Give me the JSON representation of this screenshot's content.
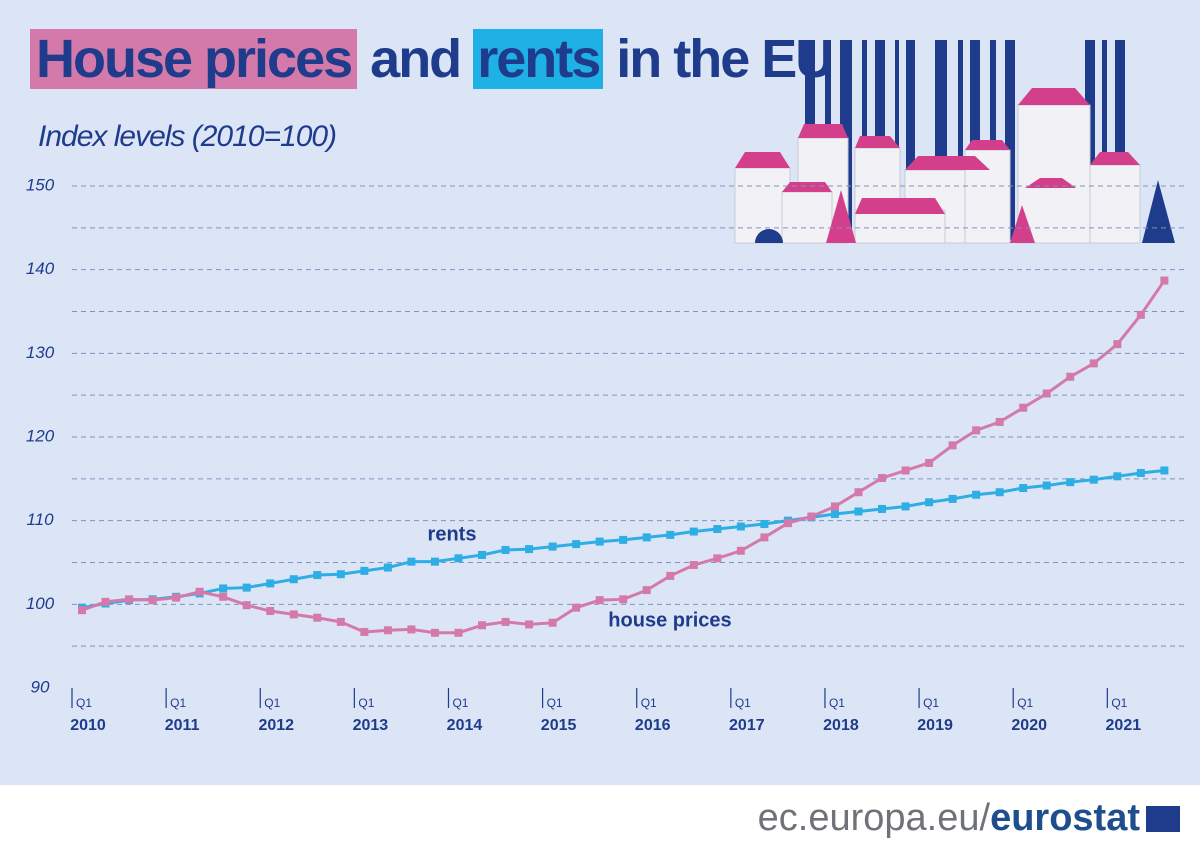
{
  "title_parts": [
    "House prices",
    "and",
    "rents",
    "in the EU"
  ],
  "footer": {
    "site": "ec.europa.eu/",
    "brand": "eurostat"
  },
  "chart_data": {
    "type": "line",
    "subtitle": "Index levels (2010=100)",
    "quarter_label": "Q1",
    "categories": [
      "2010",
      null,
      null,
      null,
      "2011",
      null,
      null,
      null,
      "2012",
      null,
      null,
      null,
      "2013",
      null,
      null,
      null,
      "2014",
      null,
      null,
      null,
      "2015",
      null,
      null,
      null,
      "2016",
      null,
      null,
      null,
      "2017",
      null,
      null,
      null,
      "2018",
      null,
      null,
      null,
      "2019",
      null,
      null,
      null,
      "2020",
      null,
      null,
      null,
      "2021",
      null,
      null
    ],
    "series": [
      {
        "name": "rents",
        "color": "#2eaee4",
        "values": [
          99.6,
          100.1,
          100.5,
          100.6,
          100.9,
          101.3,
          101.9,
          102.0,
          102.5,
          103.0,
          103.5,
          103.6,
          104.0,
          104.4,
          105.1,
          105.1,
          105.5,
          105.9,
          106.5,
          106.6,
          106.9,
          107.2,
          107.5,
          107.7,
          108.0,
          108.3,
          108.7,
          109.0,
          109.3,
          109.6,
          110.0,
          110.4,
          110.8,
          111.1,
          111.4,
          111.7,
          112.2,
          112.6,
          113.1,
          113.4,
          113.9,
          114.2,
          114.6,
          114.9,
          115.3,
          115.7,
          116.0
        ]
      },
      {
        "name": "house prices",
        "color": "#d47aab",
        "values": [
          99.3,
          100.3,
          100.6,
          100.5,
          100.8,
          101.5,
          100.9,
          99.9,
          99.2,
          98.8,
          98.4,
          97.9,
          96.7,
          96.9,
          97.0,
          96.6,
          96.6,
          97.5,
          97.9,
          97.6,
          97.8,
          99.6,
          100.5,
          100.6,
          101.7,
          103.4,
          104.7,
          105.5,
          106.4,
          108.0,
          109.7,
          110.5,
          111.7,
          113.4,
          115.1,
          116.0,
          116.9,
          119.0,
          120.8,
          121.8,
          123.5,
          125.2,
          127.2,
          128.8,
          131.1,
          134.6,
          138.7
        ]
      }
    ],
    "ylim": [
      90,
      150
    ],
    "yticks": [
      90,
      100,
      110,
      120,
      130,
      140,
      150
    ],
    "minor_yticks": [
      95,
      105,
      115,
      125,
      135,
      145
    ],
    "grid": true
  }
}
